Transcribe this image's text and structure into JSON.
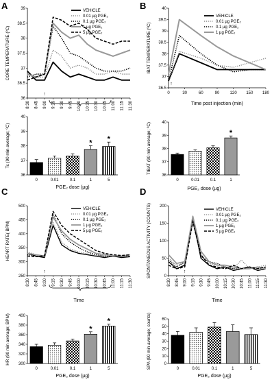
{
  "figure": {
    "panel_letters": [
      "A",
      "B",
      "C",
      "D"
    ]
  },
  "chart_data": [
    {
      "id": "A_top",
      "type": "line",
      "ylabel": "CORE TEMPERATURE (ºC)",
      "xlabel": "",
      "ylim": [
        36,
        39
      ],
      "yticks": [
        "36",
        "36.5",
        "37",
        "37.5",
        "38",
        "38.5",
        "39"
      ],
      "x": [
        "8:30",
        "8:45",
        "9:00",
        "9:15",
        "9:30",
        "9:45",
        "10:00",
        "10:15",
        "10:30",
        "10:45",
        "11:00",
        "11:15",
        "11:30"
      ],
      "annotation": "↑",
      "legend": "top-right",
      "series": [
        {
          "name": "VEHICLE",
          "color": "#000000",
          "dash": "solid",
          "width": 1.8,
          "values": [
            36.9,
            36.6,
            36.6,
            37.2,
            36.9,
            36.7,
            36.8,
            36.7,
            36.6,
            36.6,
            36.7,
            36.6,
            36.6
          ]
        },
        {
          "name": "0.01 µg PGE₂",
          "color": "#888888",
          "dash": "dot",
          "width": 1.4,
          "values": [
            36.8,
            36.7,
            36.7,
            37.6,
            37.4,
            37.0,
            37.1,
            37.0,
            36.8,
            36.8,
            36.9,
            36.8,
            36.8
          ]
        },
        {
          "name": "0.1 µg PGE₂",
          "color": "#000000",
          "dash": "dot",
          "width": 1.6,
          "values": [
            36.7,
            36.8,
            36.8,
            38.4,
            38.0,
            37.5,
            37.4,
            37.2,
            37.0,
            36.9,
            36.9,
            36.9,
            37.0
          ]
        },
        {
          "name": "1 µg PGE₂",
          "color": "#999999",
          "dash": "solid",
          "width": 2.0,
          "values": [
            36.8,
            36.7,
            36.8,
            38.5,
            38.2,
            38.0,
            38.1,
            37.8,
            37.6,
            37.5,
            37.4,
            37.5,
            37.6
          ]
        },
        {
          "name": "5 µg PGE₂",
          "color": "#000000",
          "dash": "dash",
          "width": 1.6,
          "values": [
            36.6,
            36.7,
            36.8,
            38.7,
            38.6,
            38.4,
            38.5,
            38.3,
            38.0,
            37.9,
            37.8,
            37.9,
            37.9
          ]
        }
      ]
    },
    {
      "id": "A_bar",
      "type": "bar",
      "ylabel": "Tc (90 min average; ºC)",
      "xlabel": "PGE₂ dose (µg)",
      "ylim": [
        36,
        40
      ],
      "yticks": [
        "36",
        "37",
        "38",
        "39",
        "40"
      ],
      "categories": [
        "0",
        "0.01",
        "0.1",
        "1",
        "5"
      ],
      "values": [
        36.85,
        37.15,
        37.3,
        37.75,
        37.95
      ],
      "errors": [
        0.2,
        0.15,
        0.15,
        0.25,
        0.3
      ],
      "significance": [
        "",
        "",
        "",
        "*",
        "*"
      ]
    },
    {
      "id": "B_top",
      "type": "line",
      "ylabel": "IBAT TEMPERATURE (ºC)",
      "xlabel": "Time post injection (min)",
      "ylim": [
        36.5,
        40
      ],
      "yticks": [
        "36.5",
        "37",
        "37.5",
        "38",
        "38.5",
        "39",
        "39.5",
        "40"
      ],
      "x": [
        0,
        20,
        60,
        90,
        120,
        150,
        180
      ],
      "xticks": [
        "0",
        "30",
        "60",
        "90",
        "120",
        "150",
        "180"
      ],
      "annotation": "↑",
      "legend": "top-right",
      "series": [
        {
          "name": "VEHICLE",
          "color": "#000000",
          "dash": "solid",
          "width": 1.8,
          "values": [
            36.8,
            38.0,
            37.6,
            37.3,
            37.3,
            37.3,
            37.3
          ]
        },
        {
          "name": "0.01 µg PGE₂",
          "color": "#888888",
          "dash": "dot",
          "width": 1.4,
          "values": [
            36.8,
            38.1,
            37.8,
            37.5,
            37.4,
            37.6,
            37.8
          ]
        },
        {
          "name": "0.1 µg PGE₂",
          "color": "#000000",
          "dash": "dot",
          "width": 1.6,
          "values": [
            36.8,
            38.8,
            38.0,
            37.5,
            37.2,
            37.3,
            37.3
          ]
        },
        {
          "name": "1 µg PGE₂",
          "color": "#999999",
          "dash": "solid",
          "width": 2.0,
          "values": [
            37.1,
            39.5,
            38.8,
            38.3,
            37.9,
            37.6,
            37.3
          ]
        }
      ]
    },
    {
      "id": "B_bar",
      "type": "bar",
      "ylabel": "TIBAT (90 min average; ºC)",
      "xlabel": "PGE₂ dose (µg)",
      "ylim": [
        36,
        40
      ],
      "yticks": [
        "36",
        "37",
        "38",
        "39",
        "40"
      ],
      "categories": [
        "0",
        "0.01",
        "0.1",
        "1"
      ],
      "values": [
        37.55,
        37.8,
        38.05,
        38.8
      ],
      "errors": [
        0.1,
        0.1,
        0.15,
        0.15
      ],
      "significance": [
        "",
        "",
        "",
        "*"
      ]
    },
    {
      "id": "C_top",
      "type": "line",
      "ylabel": "HEART RATE( BPM)",
      "xlabel": "Time",
      "ylim": [
        250,
        500
      ],
      "yticks": [
        "250",
        "300",
        "350",
        "400",
        "450",
        "500"
      ],
      "x": [
        "8:30",
        "8:45",
        "9:00",
        "9:15",
        "9:30",
        "9:45",
        "10:00",
        "10:15",
        "10:30",
        "10:45",
        "11:00",
        "11:15",
        "11:30"
      ],
      "annotation": "↑",
      "legend": "top-right",
      "series": [
        {
          "name": "VEHICLE",
          "color": "#000000",
          "dash": "solid",
          "width": 1.4,
          "values": [
            330,
            320,
            315,
            430,
            360,
            340,
            330,
            325,
            320,
            315,
            320,
            315,
            318
          ]
        },
        {
          "name": "0.01 µg PGE₂",
          "color": "#888888",
          "dash": "dot",
          "width": 1.3,
          "values": [
            335,
            325,
            320,
            440,
            370,
            345,
            335,
            328,
            322,
            318,
            322,
            320,
            322
          ]
        },
        {
          "name": "0.1 µg PGE₂",
          "color": "#000000",
          "dash": "dot",
          "width": 1.5,
          "values": [
            325,
            320,
            318,
            470,
            400,
            370,
            350,
            335,
            325,
            320,
            320,
            318,
            320
          ]
        },
        {
          "name": "1 µg PGE₂",
          "color": "#999999",
          "dash": "solid",
          "width": 1.8,
          "values": [
            330,
            325,
            320,
            460,
            410,
            380,
            360,
            345,
            330,
            325,
            322,
            320,
            325
          ]
        },
        {
          "name": "5 µg PGE₂",
          "color": "#000000",
          "dash": "dash",
          "width": 1.5,
          "values": [
            320,
            318,
            322,
            480,
            430,
            400,
            380,
            360,
            340,
            330,
            325,
            322,
            325
          ]
        }
      ]
    },
    {
      "id": "C_bar",
      "type": "bar",
      "ylabel": "HR (90 min average; BPM)",
      "xlabel": "PGE₂ dose (µg)",
      "ylim": [
        300,
        400
      ],
      "yticks": [
        "300",
        "320",
        "340",
        "360",
        "380",
        "400"
      ],
      "categories": [
        "0",
        "0.01",
        "0.1",
        "1",
        "5"
      ],
      "values": [
        335,
        338,
        347,
        361,
        378
      ],
      "errors": [
        5,
        5,
        4,
        5,
        4
      ],
      "significance": [
        "",
        "",
        "",
        "*",
        "*"
      ]
    },
    {
      "id": "D_top",
      "type": "line",
      "ylabel": "SPONTANEOUS ACTIVITY (COUNTS)",
      "xlabel": "Time",
      "ylim": [
        0,
        200
      ],
      "yticks": [
        "0",
        "50",
        "100",
        "150",
        "200"
      ],
      "x": [
        "8:30",
        "8:45",
        "9:00",
        "9:15",
        "9:30",
        "9:45",
        "10:00",
        "10:15",
        "10:30",
        "10:45",
        "11:00",
        "11:15",
        "11:30"
      ],
      "annotation": "↑",
      "legend": "top-right",
      "series": [
        {
          "name": "VEHICLE",
          "color": "#000000",
          "dash": "solid",
          "width": 1.4,
          "values": [
            40,
            20,
            30,
            165,
            50,
            30,
            20,
            25,
            15,
            20,
            25,
            15,
            20
          ]
        },
        {
          "name": "0.01 µg PGE₂",
          "color": "#888888",
          "dash": "dot",
          "width": 1.3,
          "values": [
            50,
            30,
            35,
            150,
            60,
            35,
            30,
            25,
            20,
            45,
            20,
            25,
            30
          ]
        },
        {
          "name": "0.1 µg PGE₂",
          "color": "#000000",
          "dash": "dot",
          "width": 1.5,
          "values": [
            45,
            25,
            40,
            160,
            55,
            40,
            35,
            25,
            20,
            20,
            25,
            20,
            25
          ]
        },
        {
          "name": "1 µg PGE₂",
          "color": "#999999",
          "dash": "solid",
          "width": 1.8,
          "values": [
            60,
            35,
            40,
            170,
            70,
            40,
            30,
            30,
            25,
            20,
            20,
            25,
            20
          ]
        },
        {
          "name": "5 µg PGE₂",
          "color": "#000000",
          "dash": "dash",
          "width": 1.5,
          "values": [
            30,
            20,
            25,
            155,
            60,
            30,
            25,
            20,
            30,
            20,
            25,
            20,
            25
          ]
        }
      ]
    },
    {
      "id": "D_bar",
      "type": "bar",
      "ylabel": "SPA (90 min average; counts)",
      "xlabel": "PGE₂ dose (µg)",
      "ylim": [
        0,
        60
      ],
      "yticks": [
        "0",
        "10",
        "20",
        "30",
        "40",
        "50",
        "60"
      ],
      "categories": [
        "0",
        "0.01",
        "0.1",
        "1",
        "5"
      ],
      "values": [
        38,
        42,
        49,
        43,
        39
      ],
      "errors": [
        5,
        6,
        6,
        9,
        9
      ],
      "significance": [
        "",
        "",
        "",
        "",
        ""
      ]
    }
  ]
}
